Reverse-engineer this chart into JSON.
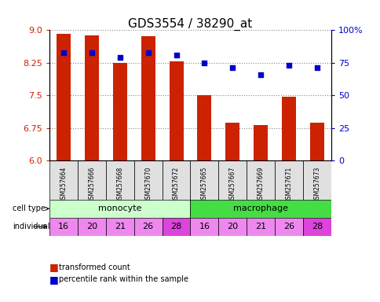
{
  "title": "GDS3554 / 38290_at",
  "samples": [
    "GSM257664",
    "GSM257666",
    "GSM257668",
    "GSM257670",
    "GSM257672",
    "GSM257665",
    "GSM257667",
    "GSM257669",
    "GSM257671",
    "GSM257673"
  ],
  "bar_values": [
    8.92,
    8.88,
    8.25,
    8.87,
    8.28,
    7.5,
    6.87,
    6.82,
    7.47,
    6.87
  ],
  "percentile_values": [
    83,
    83,
    79,
    83,
    81,
    75,
    71,
    66,
    73,
    71
  ],
  "ylim": [
    6.0,
    9.0
  ],
  "yticks_left": [
    6.0,
    6.75,
    7.5,
    8.25,
    9.0
  ],
  "yticks_right": [
    0,
    25,
    50,
    75,
    100
  ],
  "yticks_right_labels": [
    "0",
    "25",
    "50",
    "75",
    "100%"
  ],
  "cell_types": [
    "monocyte",
    "monocyte",
    "monocyte",
    "monocyte",
    "monocyte",
    "macrophage",
    "macrophage",
    "macrophage",
    "macrophage",
    "macrophage"
  ],
  "individuals": [
    16,
    20,
    21,
    26,
    28,
    16,
    20,
    21,
    26,
    28
  ],
  "monocyte_color": "#ccffcc",
  "macrophage_color": "#44dd44",
  "individual_dark_color": "#dd44dd",
  "individual_light_color": "#ee88ee",
  "individual_dark_values": [
    28
  ],
  "bar_color": "#cc2200",
  "scatter_color": "#0000cc",
  "bar_width": 0.5,
  "legend_labels": [
    "transformed count",
    "percentile rank within the sample"
  ],
  "grid_color": "#888888",
  "tick_color_left": "#cc2200",
  "tick_color_right": "#0000cc"
}
